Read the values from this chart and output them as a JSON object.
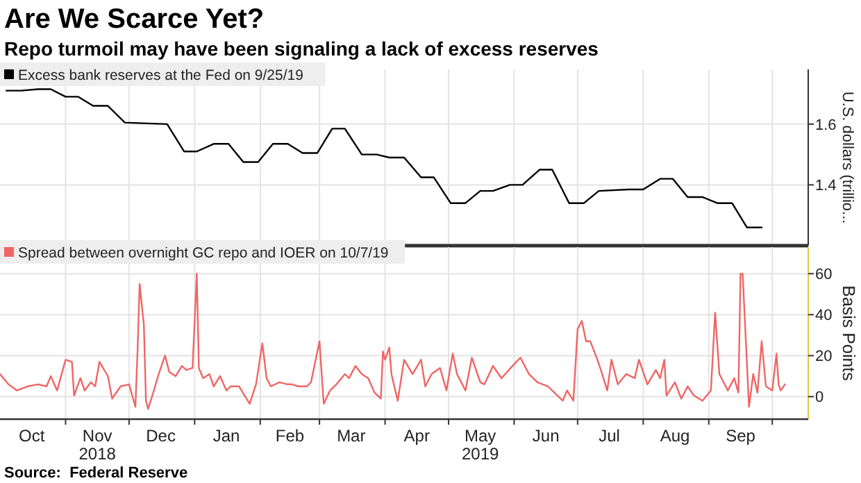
{
  "chart_data": [
    {
      "type": "line",
      "title": "Are We Scarce Yet?",
      "subtitle": "Repo turmoil may have been signaling a lack of excess reserves",
      "ylabel": "U.S. dollars (trillio...",
      "grid": true,
      "legend": "top left",
      "tick_labels": "y",
      "xlim": [
        "2018-10-01",
        "2019-10-18"
      ],
      "ylim": [
        1.2,
        1.78
      ],
      "yticks": [
        1.4,
        1.6
      ],
      "xticks": [
        {
          "value": "2018-11-01",
          "label": null
        },
        {
          "value": "2018-12-01",
          "label": null
        },
        {
          "value": "2019-01-01",
          "label": null
        },
        {
          "value": "2019-02-01",
          "label": null
        },
        {
          "value": "2019-03-01",
          "label": null
        },
        {
          "value": "2019-04-01",
          "label": null
        },
        {
          "value": "2019-05-01",
          "label": null
        },
        {
          "value": "2019-06-01",
          "label": null
        },
        {
          "value": "2019-07-01",
          "label": null
        },
        {
          "value": "2019-08-01",
          "label": null
        },
        {
          "value": "2019-09-01",
          "label": null
        },
        {
          "value": "2019-10-01",
          "label": null
        }
      ],
      "series": [
        {
          "name": "Excess bank reserves at the Fed on 9/25/19",
          "color": "#000000",
          "x": [
            "2018-10-04",
            "2018-10-11",
            "2018-10-19",
            "2018-10-25",
            "2018-11-01",
            "2018-11-07",
            "2018-11-14",
            "2018-11-21",
            "2018-11-29",
            "2018-12-19",
            "2018-12-27",
            "2019-01-02",
            "2019-01-10",
            "2019-01-17",
            "2019-01-24",
            "2019-01-31",
            "2019-02-07",
            "2019-02-14",
            "2019-02-21",
            "2019-02-28",
            "2019-03-07",
            "2019-03-13",
            "2019-03-21",
            "2019-03-28",
            "2019-04-03",
            "2019-04-10",
            "2019-04-18",
            "2019-04-24",
            "2019-05-02",
            "2019-05-09",
            "2019-05-16",
            "2019-05-22",
            "2019-05-30",
            "2019-06-05",
            "2019-06-13",
            "2019-06-19",
            "2019-06-27",
            "2019-07-04",
            "2019-07-11",
            "2019-07-25",
            "2019-08-01",
            "2019-08-09",
            "2019-08-15",
            "2019-08-22",
            "2019-08-29",
            "2019-09-05",
            "2019-09-12",
            "2019-09-19",
            "2019-09-26"
          ],
          "values": [
            1.71,
            1.71,
            1.715,
            1.715,
            1.69,
            1.69,
            1.66,
            1.66,
            1.605,
            1.6,
            1.51,
            1.51,
            1.535,
            1.535,
            1.475,
            1.475,
            1.535,
            1.535,
            1.505,
            1.505,
            1.585,
            1.585,
            1.5,
            1.5,
            1.49,
            1.49,
            1.425,
            1.425,
            1.34,
            1.34,
            1.38,
            1.38,
            1.4,
            1.4,
            1.45,
            1.45,
            1.34,
            1.34,
            1.38,
            1.385,
            1.385,
            1.42,
            1.42,
            1.36,
            1.36,
            1.34,
            1.34,
            1.26,
            1.26
          ]
        }
      ]
    },
    {
      "type": "line",
      "ylabel": "Basis Points",
      "grid": true,
      "legend": "top left",
      "annotations": [
        "Source:  Federal Reserve"
      ],
      "xlim": [
        "2018-10-01",
        "2019-10-18"
      ],
      "ylim": [
        -11,
        73
      ],
      "yticks": [
        0,
        20,
        40,
        60
      ],
      "xticks": [
        {
          "value": "2018-10-16",
          "label": "Oct"
        },
        {
          "value": "2018-11-01",
          "label": null
        },
        {
          "value": "2018-11-16",
          "label": "Nov\n2018"
        },
        {
          "value": "2018-12-01",
          "label": null
        },
        {
          "value": "2018-12-16",
          "label": "Dec"
        },
        {
          "value": "2019-01-01",
          "label": null
        },
        {
          "value": "2019-01-16",
          "label": "Jan"
        },
        {
          "value": "2019-02-01",
          "label": null
        },
        {
          "value": "2019-02-15",
          "label": "Feb"
        },
        {
          "value": "2019-03-01",
          "label": null
        },
        {
          "value": "2019-03-16",
          "label": "Mar"
        },
        {
          "value": "2019-04-01",
          "label": null
        },
        {
          "value": "2019-04-16",
          "label": "Apr"
        },
        {
          "value": "2019-05-01",
          "label": null
        },
        {
          "value": "2019-05-16",
          "label": "May\n2019"
        },
        {
          "value": "2019-06-01",
          "label": null
        },
        {
          "value": "2019-06-16",
          "label": "Jun"
        },
        {
          "value": "2019-07-01",
          "label": null
        },
        {
          "value": "2019-07-16",
          "label": "Jul"
        },
        {
          "value": "2019-08-01",
          "label": null
        },
        {
          "value": "2019-08-16",
          "label": "Aug"
        },
        {
          "value": "2019-09-01",
          "label": null
        },
        {
          "value": "2019-09-16",
          "label": "Sep"
        },
        {
          "value": "2019-10-01",
          "label": null
        }
      ],
      "series": [
        {
          "name": "Spread between overnight GC repo and IOER  on 10/7/19",
          "color": "#f06565",
          "x": [
            "2018-10-01",
            "2018-10-05",
            "2018-10-09",
            "2018-10-14",
            "2018-10-19",
            "2018-10-23",
            "2018-10-25",
            "2018-10-28",
            "2018-11-01",
            "2018-11-04",
            "2018-11-05",
            "2018-11-08",
            "2018-11-10",
            "2018-11-13",
            "2018-11-15",
            "2018-11-17",
            "2018-11-21",
            "2018-11-23",
            "2018-11-27",
            "2018-12-01",
            "2018-12-04",
            "2018-12-05",
            "2018-12-06",
            "2018-12-08",
            "2018-12-09",
            "2018-12-10",
            "2018-12-12",
            "2018-12-15",
            "2018-12-18",
            "2018-12-20",
            "2018-12-23",
            "2018-12-26",
            "2018-12-28",
            "2018-12-31",
            "2019-01-02",
            "2019-01-03",
            "2019-01-05",
            "2019-01-08",
            "2019-01-10",
            "2019-01-13",
            "2019-01-16",
            "2019-01-18",
            "2019-01-22",
            "2019-01-27",
            "2019-01-30",
            "2019-02-02",
            "2019-02-04",
            "2019-02-06",
            "2019-02-10",
            "2019-02-14",
            "2019-02-16",
            "2019-02-19",
            "2019-02-23",
            "2019-02-25",
            "2019-03-01",
            "2019-03-03",
            "2019-03-06",
            "2019-03-09",
            "2019-03-13",
            "2019-03-15",
            "2019-03-18",
            "2019-03-21",
            "2019-03-24",
            "2019-03-27",
            "2019-03-30",
            "2019-03-31",
            "2019-04-01",
            "2019-04-03",
            "2019-04-04",
            "2019-04-07",
            "2019-04-10",
            "2019-04-14",
            "2019-04-18",
            "2019-04-20",
            "2019-04-23",
            "2019-04-27",
            "2019-04-30",
            "2019-05-03",
            "2019-05-05",
            "2019-05-09",
            "2019-05-12",
            "2019-05-16",
            "2019-05-18",
            "2019-05-22",
            "2019-05-26",
            "2019-06-02",
            "2019-06-04",
            "2019-06-08",
            "2019-06-12",
            "2019-06-17",
            "2019-06-21",
            "2019-06-24",
            "2019-06-26",
            "2019-06-29",
            "2019-07-01",
            "2019-07-03",
            "2019-07-05",
            "2019-07-07",
            "2019-07-10",
            "2019-07-12",
            "2019-07-15",
            "2019-07-17",
            "2019-07-20",
            "2019-07-24",
            "2019-07-28",
            "2019-07-30",
            "2019-08-03",
            "2019-08-07",
            "2019-08-09",
            "2019-08-11",
            "2019-08-12",
            "2019-08-16",
            "2019-08-19",
            "2019-08-22",
            "2019-08-25",
            "2019-08-29",
            "2019-09-02",
            "2019-09-04",
            "2019-09-06",
            "2019-09-10",
            "2019-09-13",
            "2019-09-15",
            "2019-09-16",
            "2019-09-17",
            "2019-09-20",
            "2019-09-22",
            "2019-09-24",
            "2019-09-26",
            "2019-09-28",
            "2019-10-01",
            "2019-10-03",
            "2019-10-04",
            "2019-10-05",
            "2019-10-07"
          ],
          "values": [
            11,
            6,
            3,
            5,
            6,
            5,
            10,
            3,
            18,
            17,
            0.5,
            9,
            3,
            7,
            5,
            17,
            10,
            -1,
            5,
            6,
            -5,
            22,
            55,
            35,
            -2,
            -6,
            0.5,
            11,
            20,
            12,
            10,
            15,
            13,
            14,
            60,
            14,
            9,
            11,
            5,
            10,
            3,
            5,
            5,
            -3.5,
            6,
            26,
            9,
            5,
            7,
            6,
            6,
            5,
            5,
            7,
            27,
            -3.5,
            3,
            6,
            11,
            9,
            15,
            11,
            9,
            2,
            -1,
            22,
            18,
            24,
            11,
            -2,
            18,
            11,
            18,
            5,
            11,
            14,
            3,
            21,
            11,
            3,
            19,
            7,
            6,
            15,
            9,
            17,
            19,
            11,
            7,
            5,
            1,
            -2,
            3,
            -2,
            33,
            37,
            27,
            27,
            19,
            13,
            3,
            18,
            6,
            11,
            9,
            18,
            6,
            13,
            9,
            18,
            0.5,
            7,
            -1,
            5,
            0.5,
            -2,
            3,
            41,
            11,
            3,
            9,
            2,
            60,
            60,
            -5,
            11,
            2,
            27,
            5,
            3,
            21,
            6,
            3,
            6
          ]
        }
      ]
    }
  ]
}
